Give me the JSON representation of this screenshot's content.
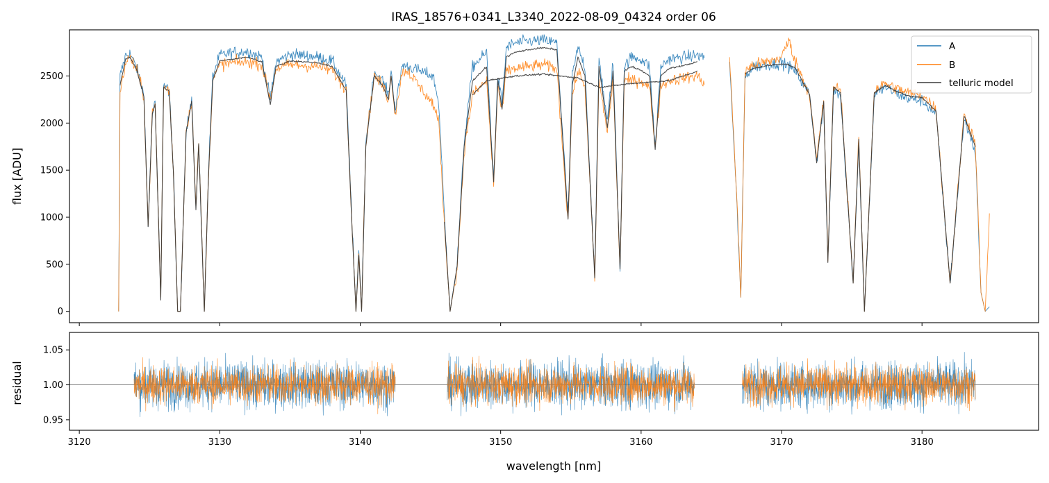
{
  "chart_data": [
    {
      "panel": "top",
      "type": "line",
      "title": "IRAS_18576+0341_L3340_2022-08-09_04324  order 06",
      "xlabel": "",
      "ylabel": "flux [ADU]",
      "xlim": [
        3119.3,
        3188.3
      ],
      "ylim": [
        -120,
        2990
      ],
      "x_ticks": [
        3120,
        3130,
        3140,
        3150,
        3160,
        3170,
        3180
      ],
      "y_ticks": [
        0,
        500,
        1000,
        1500,
        2000,
        2500
      ],
      "y_tick_labels": [
        "0",
        "500",
        "1000",
        "1500",
        "2000",
        "2500"
      ],
      "legend": {
        "position": "top-right",
        "entries": [
          "A",
          "B",
          "telluric model"
        ]
      },
      "series": [
        {
          "name": "A",
          "color": "#1f77b4",
          "x": [
            3122.8,
            3122.9,
            3123.3,
            3123.6,
            3124.1,
            3124.6,
            3124.9,
            3125.2,
            3125.4,
            3125.8,
            3126.0,
            3126.4,
            3126.7,
            3127.0,
            3127.2,
            3127.6,
            3128.0,
            3128.3,
            3128.5,
            3128.9,
            3129.2,
            3129.5,
            3130.0,
            3131.0,
            3132.0,
            3133.0,
            3133.6,
            3134.0,
            3135.0,
            3136.0,
            3137.0,
            3138.0,
            3139.0,
            3139.4,
            3139.7,
            3139.9,
            3140.1,
            3140.4,
            3141.0,
            3141.6,
            3142.0,
            3142.2,
            3142.5,
            3143.0,
            3143.4,
            3145.2,
            3145.6,
            3146.0,
            3146.4,
            3146.9,
            3147.4,
            3148.0,
            3149.0,
            3149.5,
            3149.8,
            3150.1,
            3150.4,
            3151.0,
            3152.0,
            3153.0,
            3154.0,
            3154.8,
            3155.1,
            3155.5,
            3156.0,
            3156.7,
            3157.0,
            3157.6,
            3158.0,
            3158.5,
            3158.8,
            3159.3,
            3160.0,
            3160.6,
            3161.0,
            3161.4,
            3162.0,
            3163.0,
            3164.0,
            3164.5
          ],
          "values": [
            0,
            2500,
            2720,
            2740,
            2580,
            2300,
            900,
            2100,
            2200,
            150,
            2400,
            2350,
            1500,
            0,
            0,
            1900,
            2250,
            1100,
            1800,
            0,
            1500,
            2500,
            2720,
            2750,
            2760,
            2700,
            2250,
            2650,
            2730,
            2720,
            2700,
            2660,
            2400,
            1000,
            0,
            650,
            0,
            1800,
            2550,
            2450,
            2300,
            2560,
            2150,
            2620,
            2600,
            2500,
            2200,
            1000,
            0,
            500,
            1800,
            2600,
            2750,
            1400,
            2500,
            2200,
            2800,
            2850,
            2870,
            2880,
            2850,
            1000,
            2500,
            2800,
            2600,
            350,
            2700,
            2000,
            2650,
            450,
            2600,
            2700,
            2680,
            2600,
            1750,
            2600,
            2680,
            2700,
            2720,
            2700
          ]
        },
        {
          "name": "A",
          "color": "#1f77b4",
          "x": [
            3166.3,
            3166.8,
            3167.1,
            3167.4,
            3168.0,
            3169.0,
            3170.0,
            3170.5,
            3171.0,
            3172.0,
            3172.5,
            3173.0,
            3173.3,
            3173.7,
            3174.2,
            3175.1,
            3175.5,
            3175.9,
            3176.6,
            3177.4,
            3178.0,
            3179.0,
            3180.0,
            3181.0,
            3182.0,
            3183.0,
            3183.8,
            3184.2,
            3184.5,
            3184.8
          ],
          "values": [
            2650,
            1200,
            150,
            2500,
            2600,
            2620,
            2640,
            2600,
            2550,
            2300,
            1600,
            2200,
            500,
            2350,
            2300,
            300,
            1800,
            0,
            2300,
            2380,
            2330,
            2260,
            2240,
            2100,
            300,
            2050,
            1700,
            200,
            0,
            50
          ]
        },
        {
          "name": "B",
          "color": "#ff7f0e",
          "x": [
            3122.8,
            3122.9,
            3123.3,
            3123.6,
            3124.1,
            3124.6,
            3124.9,
            3125.2,
            3125.4,
            3125.8,
            3126.0,
            3126.4,
            3126.7,
            3127.0,
            3127.2,
            3127.6,
            3128.0,
            3128.3,
            3128.5,
            3128.9,
            3129.2,
            3129.5,
            3130.0,
            3131.0,
            3132.0,
            3133.0,
            3133.6,
            3134.0,
            3135.0,
            3136.0,
            3137.0,
            3138.0,
            3139.0,
            3139.4,
            3139.7,
            3139.9,
            3140.1,
            3140.4,
            3141.0,
            3141.6,
            3142.0,
            3142.2,
            3142.5,
            3143.0,
            3143.4,
            3145.2,
            3145.6,
            3146.0,
            3146.4,
            3146.9,
            3147.4,
            3148.0,
            3149.0,
            3149.5,
            3149.8,
            3150.1,
            3150.4,
            3151.0,
            3152.0,
            3153.0,
            3154.0,
            3154.8,
            3155.1,
            3155.5,
            3156.0,
            3156.7,
            3157.0,
            3157.6,
            3158.0,
            3158.5,
            3158.8,
            3159.3,
            3160.0,
            3160.6,
            3161.0,
            3161.4,
            3162.0,
            3163.0,
            3164.0,
            3164.5
          ],
          "values": [
            0,
            2300,
            2650,
            2700,
            2560,
            2280,
            900,
            2100,
            2200,
            150,
            2380,
            2350,
            1500,
            0,
            0,
            1900,
            2250,
            1100,
            1800,
            0,
            1450,
            2450,
            2620,
            2640,
            2650,
            2620,
            2250,
            2580,
            2620,
            2610,
            2600,
            2560,
            2350,
            1000,
            0,
            650,
            0,
            1800,
            2500,
            2400,
            2250,
            2500,
            2100,
            2550,
            2550,
            2200,
            2000,
            900,
            0,
            450,
            1700,
            2300,
            2450,
            1350,
            2400,
            2100,
            2550,
            2580,
            2600,
            2620,
            2580,
            950,
            2300,
            2550,
            2400,
            350,
            2450,
            1900,
            2450,
            450,
            2450,
            2450,
            2450,
            2380,
            1750,
            2400,
            2450,
            2480,
            2500,
            2420
          ]
        },
        {
          "name": "B",
          "color": "#ff7f0e",
          "x": [
            3166.3,
            3166.8,
            3167.1,
            3167.4,
            3168.0,
            3169.0,
            3170.0,
            3170.5,
            3171.0,
            3172.0,
            3172.5,
            3173.0,
            3173.3,
            3173.7,
            3174.2,
            3175.1,
            3175.5,
            3175.9,
            3176.6,
            3177.4,
            3178.0,
            3179.0,
            3180.0,
            3181.0,
            3182.0,
            3183.0,
            3183.8,
            3184.2,
            3184.5,
            3184.8
          ],
          "values": [
            2700,
            1250,
            150,
            2550,
            2620,
            2650,
            2700,
            2880,
            2650,
            2300,
            1600,
            2250,
            550,
            2400,
            2350,
            300,
            1850,
            0,
            2350,
            2420,
            2380,
            2320,
            2300,
            2150,
            300,
            2100,
            1800,
            200,
            0,
            1000
          ]
        },
        {
          "name": "telluric model",
          "color": "#3a3a3a",
          "x": [
            3122.9,
            3123.3,
            3123.6,
            3124.1,
            3124.6,
            3124.9,
            3125.2,
            3125.4,
            3125.8,
            3126.0,
            3126.4,
            3126.7,
            3127.0,
            3127.2,
            3127.6,
            3128.0,
            3128.3,
            3128.5,
            3128.9,
            3129.2,
            3129.5,
            3130.0,
            3131.0,
            3132.0,
            3133.0,
            3133.6,
            3134.0,
            3135.0,
            3136.0,
            3137.0,
            3138.0,
            3139.0,
            3139.4,
            3139.7,
            3139.9,
            3140.1,
            3140.4,
            3141.0,
            3141.6,
            3142.0,
            3142.2,
            3142.5
          ],
          "values": [
            2400,
            2680,
            2700,
            2560,
            2280,
            900,
            2100,
            2200,
            120,
            2380,
            2340,
            1480,
            0,
            0,
            1900,
            2230,
            1080,
            1780,
            0,
            1450,
            2450,
            2660,
            2680,
            2700,
            2650,
            2200,
            2600,
            2660,
            2650,
            2640,
            2600,
            2350,
            950,
            0,
            600,
            0,
            1750,
            2500,
            2400,
            2250,
            2500,
            2100
          ]
        },
        {
          "name": "telluric model",
          "color": "#3a3a3a",
          "x": [
            3146.0,
            3146.4,
            3146.9,
            3147.4,
            3148.0,
            3149.0,
            3149.5,
            3149.8,
            3150.1,
            3150.4,
            3151.0,
            3152.0,
            3153.0,
            3154.0,
            3154.8,
            3155.1,
            3155.5,
            3156.0,
            3156.7,
            3157.0,
            3157.6,
            3158.0,
            3158.5,
            3158.8,
            3159.3,
            3160.0,
            3160.6,
            3161.0,
            3161.4,
            3162.0,
            3163.0,
            3164.0
          ],
          "values": [
            950,
            0,
            480,
            1750,
            2450,
            2600,
            1380,
            2450,
            2150,
            2700,
            2750,
            2780,
            2800,
            2780,
            980,
            2400,
            2700,
            2500,
            350,
            2600,
            1950,
            2550,
            450,
            2550,
            2600,
            2560,
            2500,
            1720,
            2500,
            2580,
            2610,
            2650
          ]
        },
        {
          "name": "telluric model",
          "color": "#3a3a3a",
          "x": [
            3148.0,
            3149.0,
            3151.0,
            3153.0,
            3155.5,
            3157.0,
            3159.3,
            3162.0,
            3164.0
          ],
          "values": [
            2300,
            2450,
            2500,
            2520,
            2480,
            2380,
            2420,
            2450,
            2550
          ]
        },
        {
          "name": "telluric model",
          "color": "#3a3a3a",
          "x": [
            3167.4,
            3168.0,
            3169.0,
            3170.0,
            3170.5,
            3171.0,
            3172.0,
            3172.5,
            3173.0,
            3173.3,
            3173.7,
            3174.2,
            3175.1,
            3175.5,
            3175.9,
            3176.6,
            3177.4,
            3178.0,
            3179.0,
            3180.0,
            3181.0,
            3182.0,
            3183.0,
            3183.8
          ],
          "values": [
            2520,
            2580,
            2610,
            2630,
            2620,
            2580,
            2300,
            1580,
            2230,
            520,
            2380,
            2320,
            300,
            1820,
            0,
            2320,
            2400,
            2350,
            2290,
            2270,
            2130,
            300,
            2080,
            1750
          ]
        }
      ]
    },
    {
      "panel": "bottom",
      "type": "line",
      "title": "",
      "xlabel": "wavelength [nm]",
      "ylabel": "residual",
      "xlim": [
        3119.3,
        3188.3
      ],
      "ylim": [
        0.935,
        1.075
      ],
      "x_ticks": [
        3120,
        3130,
        3140,
        3150,
        3160,
        3170,
        3180
      ],
      "x_tick_labels": [
        "3120",
        "3130",
        "3140",
        "3150",
        "3160",
        "3170",
        "3180"
      ],
      "y_ticks": [
        0.95,
        1.0,
        1.05
      ],
      "y_tick_labels": [
        "0.95",
        "1.00",
        "1.05"
      ],
      "reference_line": 1.0,
      "segments_x": [
        [
          3123.9,
          3142.5
        ],
        [
          3146.2,
          3163.8
        ],
        [
          3167.2,
          3183.8
        ]
      ],
      "series": [
        {
          "name": "A",
          "color": "#1f77b4",
          "noise_std": 0.024
        },
        {
          "name": "B",
          "color": "#ff7f0e",
          "noise_std": 0.02
        }
      ]
    }
  ]
}
